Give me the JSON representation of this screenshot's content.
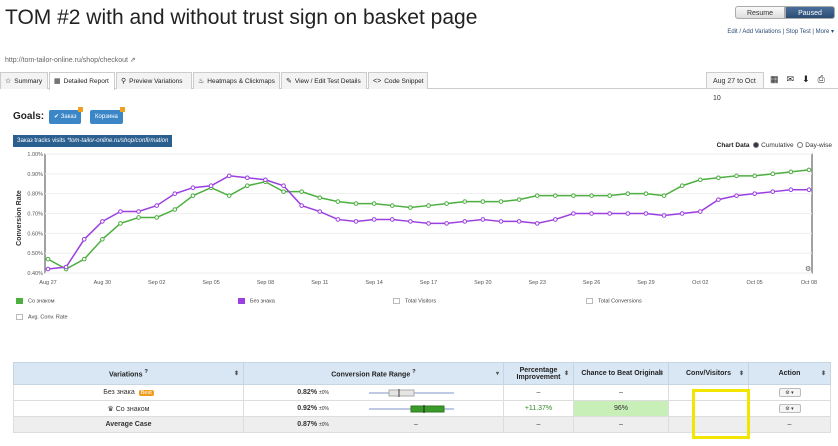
{
  "page": {
    "title": "TOM #2 with and without trust sign on basket page",
    "url": "http://tom-tailor-online.ru/shop/checkout"
  },
  "controls": {
    "resume": "Resume",
    "paused": "Paused",
    "links": "Edit / Add Variations | Stop Test | More"
  },
  "tabs": [
    "Summary",
    "Detailed Report",
    "Preview Variations",
    "Heatmaps & Clickmaps",
    "View / Edit Test Details",
    "Code Snippet"
  ],
  "date_range": "Aug 27 to Oct 10",
  "goals": {
    "label": "Goals:",
    "items": [
      "Заказ",
      "Корзина"
    ]
  },
  "tracks": "Заказ tracks visits ",
  "tracks_url": "*tom-tailor-online.ru/shop/confirmation",
  "chart_options": {
    "label": "Chart Data",
    "cumulative": "Cumulative",
    "daywise": "Day-wise"
  },
  "chart_data": {
    "type": "line",
    "ylabel": "Conversion Rate",
    "ylim": [
      0.4,
      1.0
    ],
    "yticks": [
      "1.00%",
      "0.90%",
      "0.80%",
      "0.70%",
      "0.60%",
      "0.50%",
      "0.40%"
    ],
    "xticks": [
      "Aug 27",
      "Aug 30",
      "Sep 02",
      "Sep 05",
      "Sep 08",
      "Sep 11",
      "Sep 14",
      "Sep 17",
      "Sep 20",
      "Sep 23",
      "Sep 26",
      "Sep 29",
      "Oct 02",
      "Oct 05",
      "Oct 08"
    ],
    "series": [
      {
        "name": "Со знаком",
        "color": "#4caf3f",
        "values": [
          0.47,
          0.42,
          0.47,
          0.57,
          0.65,
          0.68,
          0.68,
          0.72,
          0.79,
          0.83,
          0.79,
          0.84,
          0.86,
          0.81,
          0.81,
          0.78,
          0.76,
          0.75,
          0.75,
          0.74,
          0.73,
          0.74,
          0.75,
          0.76,
          0.76,
          0.76,
          0.77,
          0.79,
          0.79,
          0.79,
          0.79,
          0.79,
          0.8,
          0.8,
          0.79,
          0.84,
          0.87,
          0.88,
          0.89,
          0.89,
          0.9,
          0.91,
          0.92
        ]
      },
      {
        "name": "Без знака",
        "color": "#9b3fe0",
        "values": [
          0.42,
          0.43,
          0.57,
          0.66,
          0.71,
          0.71,
          0.74,
          0.8,
          0.83,
          0.84,
          0.89,
          0.88,
          0.87,
          0.84,
          0.74,
          0.71,
          0.67,
          0.66,
          0.67,
          0.67,
          0.66,
          0.65,
          0.65,
          0.66,
          0.67,
          0.66,
          0.66,
          0.65,
          0.67,
          0.7,
          0.7,
          0.7,
          0.7,
          0.7,
          0.69,
          0.7,
          0.71,
          0.77,
          0.79,
          0.8,
          0.81,
          0.82,
          0.82
        ]
      }
    ]
  },
  "legend": [
    "Со знаком",
    "Без знака",
    "Total Visitors",
    "Total Conversions",
    "Avg. Conv. Rate"
  ],
  "table": {
    "headers": [
      "Variations",
      "Conversion Rate Range",
      "Percentage Improvement",
      "Chance to Beat Original",
      "Conv/Visitors",
      "Action"
    ],
    "rows": [
      {
        "name": "Без знака",
        "badge": "Best",
        "rate": "0.82%",
        "pm": "±0%",
        "improvement": "–",
        "chance": "–"
      },
      {
        "name": "Со знаком",
        "badge": "",
        "rate": "0.92%",
        "pm": "±0%",
        "improvement": "+11.37%",
        "chance": "96%"
      },
      {
        "name": "Average Case",
        "badge": "",
        "rate": "0.87%",
        "pm": "±0%",
        "improvement": "–",
        "chance": "–"
      }
    ]
  }
}
